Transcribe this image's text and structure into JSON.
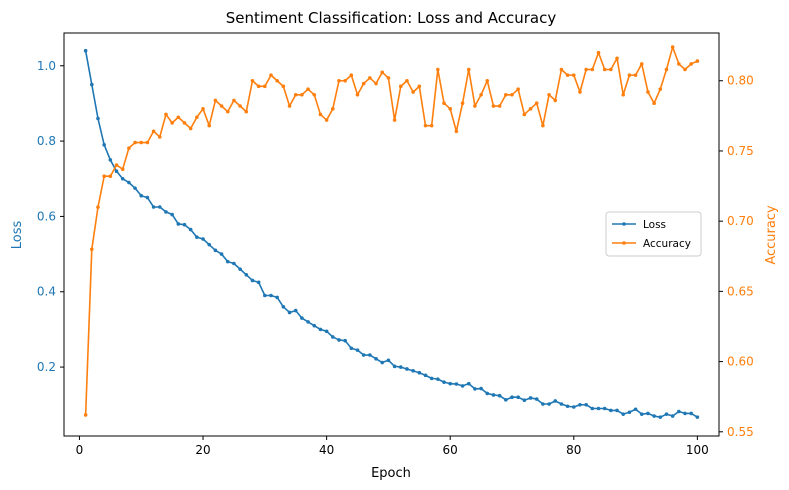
{
  "chart_data": {
    "type": "line",
    "title": "Sentiment Classification: Loss and Accuracy",
    "xlabel": "Epoch",
    "ylabel_left": "Loss",
    "ylabel_right": "Accuracy",
    "xlim": [
      -2.5,
      103.5
    ],
    "ylim_left": [
      0.017,
      1.087
    ],
    "ylim_right": [
      0.547,
      0.834
    ],
    "x_ticks": [
      0,
      20,
      40,
      60,
      80,
      100
    ],
    "y_ticks_left": [
      0.2,
      0.4,
      0.6,
      0.8,
      1.0
    ],
    "y_ticks_right": [
      0.55,
      0.6,
      0.65,
      0.7,
      0.75,
      0.8
    ],
    "grid": false,
    "legend_placement": "center-right",
    "colors": {
      "loss": "#1f77b4",
      "accuracy": "#ff7f0e"
    },
    "x": [
      1,
      2,
      3,
      4,
      5,
      6,
      7,
      8,
      9,
      10,
      11,
      12,
      13,
      14,
      15,
      16,
      17,
      18,
      19,
      20,
      21,
      22,
      23,
      24,
      25,
      26,
      27,
      28,
      29,
      30,
      31,
      32,
      33,
      34,
      35,
      36,
      37,
      38,
      39,
      40,
      41,
      42,
      43,
      44,
      45,
      46,
      47,
      48,
      49,
      50,
      51,
      52,
      53,
      54,
      55,
      56,
      57,
      58,
      59,
      60,
      61,
      62,
      63,
      64,
      65,
      66,
      67,
      68,
      69,
      70,
      71,
      72,
      73,
      74,
      75,
      76,
      77,
      78,
      79,
      80,
      81,
      82,
      83,
      84,
      85,
      86,
      87,
      88,
      89,
      90,
      91,
      92,
      93,
      94,
      95,
      96,
      97,
      98,
      99,
      100
    ],
    "series": [
      {
        "name": "Loss",
        "axis": "left",
        "color": "#1f77b4",
        "values": [
          1.04,
          0.95,
          0.86,
          0.79,
          0.75,
          0.72,
          0.7,
          0.69,
          0.675,
          0.655,
          0.65,
          0.625,
          0.625,
          0.612,
          0.605,
          0.58,
          0.578,
          0.565,
          0.545,
          0.54,
          0.525,
          0.51,
          0.5,
          0.48,
          0.475,
          0.46,
          0.445,
          0.43,
          0.425,
          0.39,
          0.39,
          0.385,
          0.36,
          0.345,
          0.35,
          0.33,
          0.32,
          0.31,
          0.3,
          0.295,
          0.28,
          0.272,
          0.27,
          0.25,
          0.245,
          0.232,
          0.232,
          0.222,
          0.212,
          0.218,
          0.202,
          0.2,
          0.195,
          0.19,
          0.185,
          0.178,
          0.17,
          0.168,
          0.16,
          0.156,
          0.155,
          0.15,
          0.156,
          0.142,
          0.143,
          0.13,
          0.126,
          0.124,
          0.113,
          0.12,
          0.12,
          0.112,
          0.118,
          0.115,
          0.102,
          0.102,
          0.11,
          0.102,
          0.096,
          0.094,
          0.1,
          0.1,
          0.09,
          0.09,
          0.09,
          0.085,
          0.085,
          0.075,
          0.08,
          0.088,
          0.075,
          0.077,
          0.07,
          0.067,
          0.075,
          0.07,
          0.082,
          0.077,
          0.077,
          0.067
        ]
      },
      {
        "name": "Accuracy",
        "axis": "right",
        "color": "#ff7f0e",
        "values": [
          0.562,
          0.68,
          0.71,
          0.732,
          0.732,
          0.74,
          0.737,
          0.752,
          0.756,
          0.756,
          0.756,
          0.764,
          0.76,
          0.776,
          0.77,
          0.774,
          0.77,
          0.766,
          0.774,
          0.78,
          0.768,
          0.786,
          0.782,
          0.778,
          0.786,
          0.782,
          0.778,
          0.8,
          0.796,
          0.796,
          0.804,
          0.8,
          0.796,
          0.782,
          0.79,
          0.79,
          0.794,
          0.79,
          0.776,
          0.772,
          0.78,
          0.8,
          0.8,
          0.804,
          0.79,
          0.798,
          0.802,
          0.798,
          0.806,
          0.802,
          0.772,
          0.796,
          0.8,
          0.792,
          0.796,
          0.768,
          0.768,
          0.808,
          0.784,
          0.78,
          0.764,
          0.784,
          0.808,
          0.782,
          0.79,
          0.8,
          0.782,
          0.782,
          0.79,
          0.79,
          0.794,
          0.776,
          0.78,
          0.784,
          0.768,
          0.79,
          0.786,
          0.808,
          0.804,
          0.804,
          0.792,
          0.808,
          0.808,
          0.82,
          0.808,
          0.808,
          0.816,
          0.79,
          0.804,
          0.804,
          0.812,
          0.792,
          0.784,
          0.794,
          0.808,
          0.824,
          0.812,
          0.808,
          0.812,
          0.814
        ]
      }
    ]
  }
}
